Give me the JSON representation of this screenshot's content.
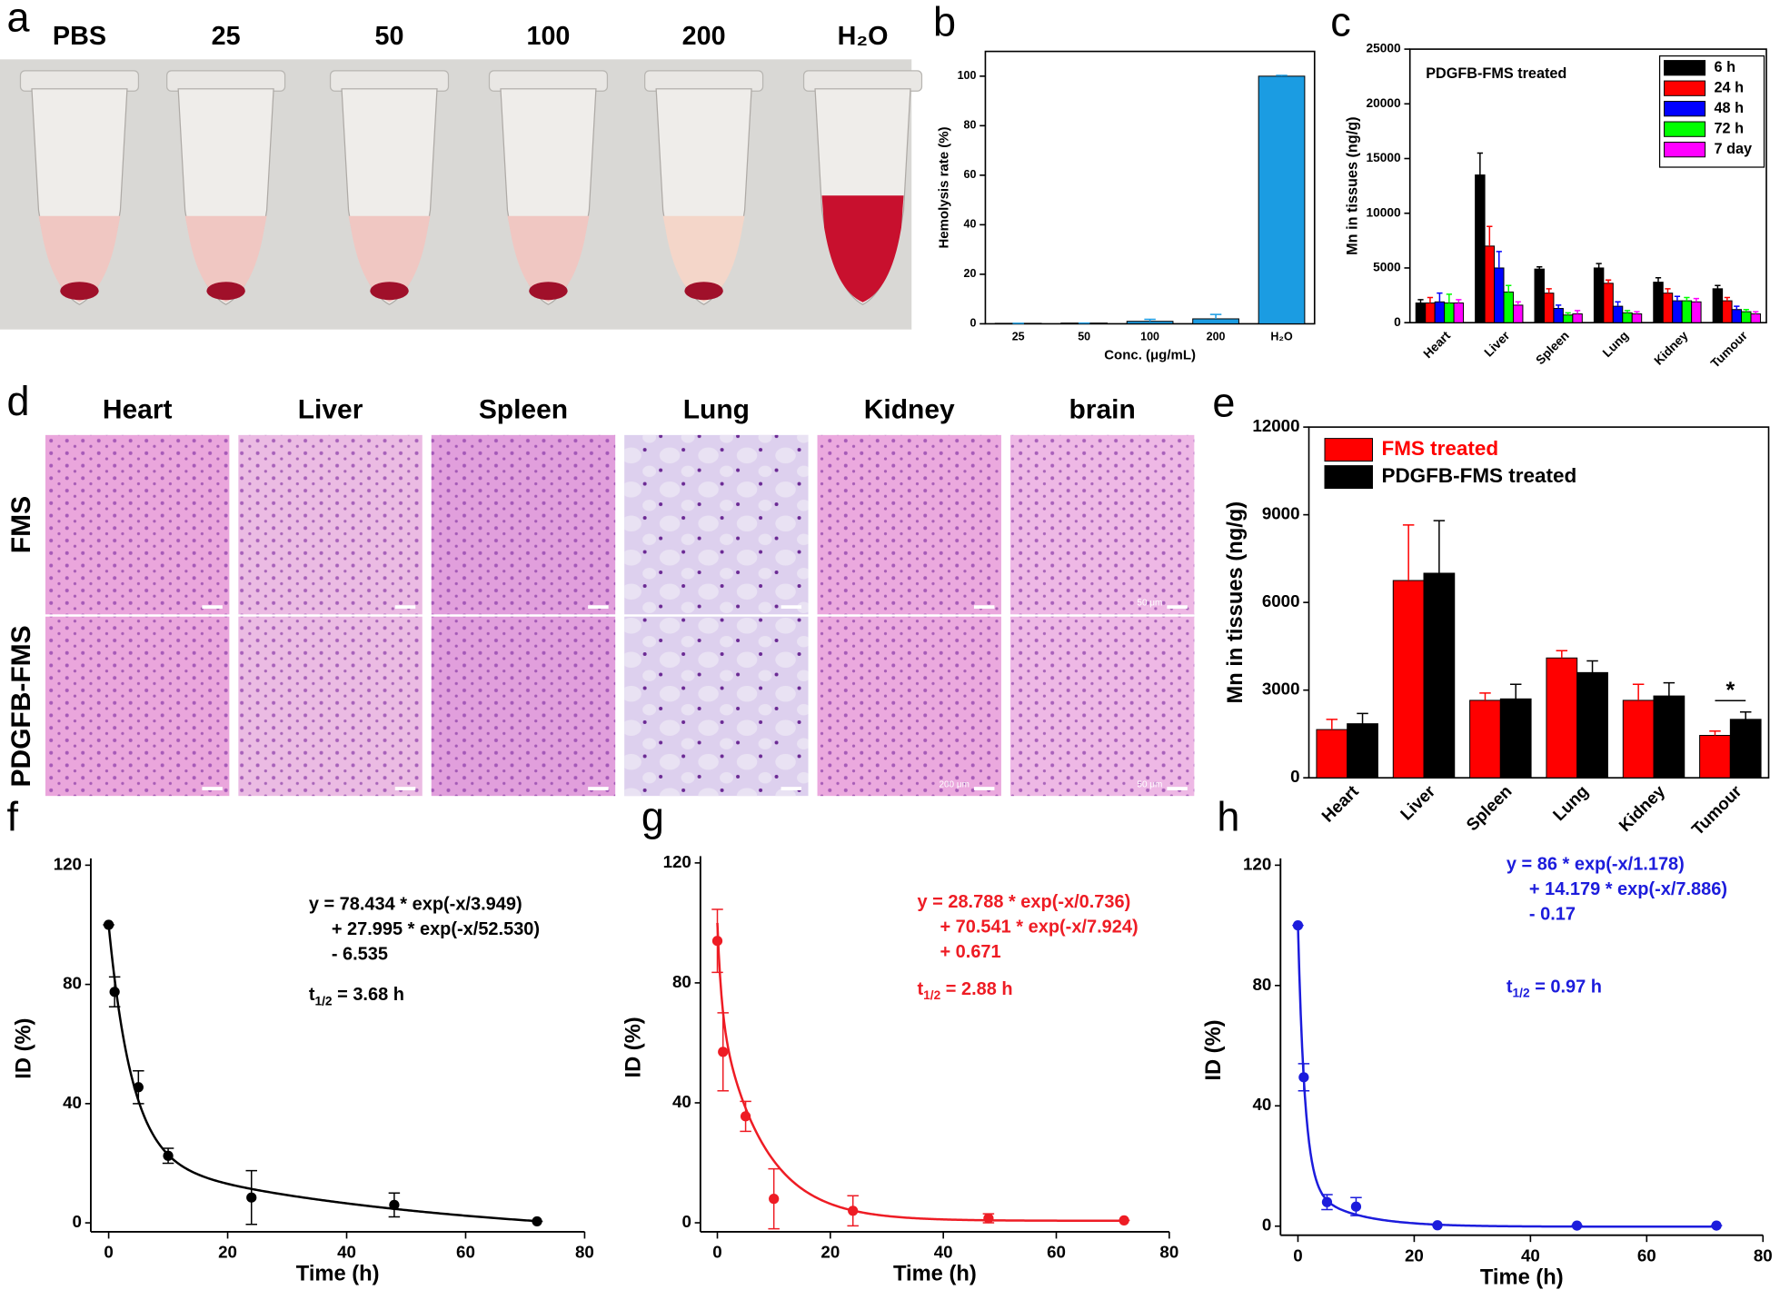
{
  "photo": {
    "panel_label": "a",
    "tube_labels": [
      "PBS",
      "25",
      "50",
      "100",
      "200",
      "H₂O"
    ]
  },
  "histology": {
    "panel_label": "d",
    "columns": [
      "Heart",
      "Liver",
      "Spleen",
      "Lung",
      "Kidney",
      "brain"
    ],
    "rows": [
      {
        "label": "FMS",
        "scale_labels": [
          null,
          null,
          null,
          null,
          null,
          "50 μm"
        ]
      },
      {
        "label": "PDGFB-FMS",
        "scale_labels": [
          null,
          null,
          null,
          null,
          "200 μm",
          "50 μm"
        ]
      }
    ]
  },
  "chart_data": [
    {
      "panel_label": "b",
      "type": "bar",
      "categories": [
        "25",
        "50",
        "100",
        "200",
        "H₂O"
      ],
      "values": [
        0.2,
        0.3,
        1,
        2,
        100
      ],
      "errors": [
        0,
        0,
        0.8,
        1.8,
        0.3
      ],
      "color": "#1b9ce2",
      "xlabel": "Conc. (μg/mL)",
      "ylabel": "Hemolysis rate (%)",
      "ylim": [
        0,
        110
      ],
      "yticks": [
        0,
        20,
        40,
        60,
        80,
        100
      ]
    },
    {
      "panel_label": "c",
      "type": "bar",
      "annotation": "PDGFB-FMS treated",
      "categories": [
        "Heart",
        "Liver",
        "Spleen",
        "Lung",
        "Kidney",
        "Tumour"
      ],
      "series": [
        {
          "name": "6 h",
          "color": "#000000",
          "values": [
            1800,
            13500,
            4900,
            5000,
            3700,
            3100
          ],
          "errors": [
            300,
            2000,
            200,
            400,
            400,
            300
          ]
        },
        {
          "name": "24 h",
          "color": "#ff0000",
          "values": [
            1800,
            7000,
            2700,
            3600,
            2700,
            2000
          ],
          "errors": [
            500,
            1800,
            400,
            300,
            400,
            300
          ]
        },
        {
          "name": "48 h",
          "color": "#0000ff",
          "values": [
            1900,
            5000,
            1300,
            1500,
            2000,
            1200
          ],
          "errors": [
            800,
            1500,
            300,
            400,
            400,
            300
          ]
        },
        {
          "name": "72 h",
          "color": "#00ff00",
          "values": [
            1800,
            2800,
            700,
            900,
            2000,
            1000
          ],
          "errors": [
            800,
            600,
            200,
            200,
            300,
            200
          ]
        },
        {
          "name": "7 day",
          "color": "#ff00ff",
          "values": [
            1800,
            1600,
            800,
            800,
            1900,
            800
          ],
          "errors": [
            300,
            300,
            300,
            200,
            300,
            200
          ]
        }
      ],
      "ylabel": "Mn in tissues (ng/g)",
      "ylim": [
        0,
        25000
      ],
      "yticks": [
        0,
        5000,
        10000,
        15000,
        20000,
        25000
      ],
      "legend": "upper right"
    },
    {
      "panel_label": "e",
      "type": "bar",
      "annotation": "*",
      "categories": [
        "Heart",
        "Liver",
        "Spleen",
        "Lung",
        "Kidney",
        "Tumour"
      ],
      "series": [
        {
          "name": "FMS treated",
          "color": "#ff0000",
          "values": [
            1650,
            6750,
            2650,
            4100,
            2650,
            1450
          ],
          "errors": [
            350,
            1900,
            250,
            250,
            550,
            150
          ]
        },
        {
          "name": "PDGFB-FMS treated",
          "color": "#000000",
          "values": [
            1850,
            7000,
            2700,
            3600,
            2800,
            2000
          ],
          "errors": [
            350,
            1800,
            500,
            400,
            450,
            250
          ]
        }
      ],
      "ylabel": "Mn in tissues (ng/g)",
      "ylim": [
        0,
        12000
      ],
      "yticks": [
        0,
        3000,
        6000,
        9000,
        12000
      ],
      "legend": "upper left",
      "legend_text_colored": true
    },
    {
      "panel_label": "f",
      "type": "scatter",
      "color": "#000000",
      "x": [
        0,
        1,
        5,
        10,
        24,
        48,
        72
      ],
      "values": [
        100,
        77.5,
        45.5,
        22.5,
        8.5,
        6,
        0.5
      ],
      "errors": [
        0,
        5,
        5.5,
        2.5,
        9,
        4,
        0
      ],
      "fit": {
        "a1": 78.434,
        "t1": 3.949,
        "a2": 27.995,
        "t2": 52.53,
        "c": -6.535
      },
      "equation": [
        "y = 78.434 * exp(-x/3.949)",
        "+ 27.995 * exp(-x/52.530)",
        "- 6.535"
      ],
      "half_life": {
        "symbol": "t",
        "subscript": "1/2",
        "text": " = 3.68 h"
      },
      "xlabel": "Time (h)",
      "ylabel": "ID (%)",
      "xlim": [
        -3,
        80
      ],
      "xticks": [
        0,
        20,
        40,
        60,
        80
      ],
      "ylim": [
        -3,
        120
      ],
      "yticks": [
        0,
        40,
        80,
        120
      ]
    },
    {
      "panel_label": "g",
      "type": "scatter",
      "color": "#ee1c24",
      "x": [
        0,
        1,
        5,
        10,
        24,
        48,
        72
      ],
      "values": [
        94,
        57,
        35.5,
        8,
        4,
        1.5,
        0.8
      ],
      "errors": [
        10.5,
        13,
        5,
        10,
        5,
        1.5,
        0
      ],
      "fit": {
        "a1": 28.788,
        "t1": 0.736,
        "a2": 70.541,
        "t2": 7.924,
        "c": 0.671
      },
      "equation": [
        "y = 28.788 * exp(-x/0.736)",
        "+ 70.541 * exp(-x/7.924)",
        "+ 0.671"
      ],
      "half_life": {
        "symbol": "t",
        "subscript": "1/2",
        "text": " = 2.88 h"
      },
      "xlabel": "Time (h)",
      "ylabel": "ID (%)",
      "xlim": [
        -3,
        80
      ],
      "xticks": [
        0,
        20,
        40,
        60,
        80
      ],
      "ylim": [
        -3,
        120
      ],
      "yticks": [
        0,
        40,
        80,
        120
      ]
    },
    {
      "panel_label": "h",
      "type": "scatter",
      "color": "#1c1cdc",
      "x": [
        0,
        1,
        5,
        10,
        24,
        48,
        72
      ],
      "values": [
        100,
        49.5,
        8,
        6.5,
        0.3,
        0.2,
        0.2
      ],
      "errors": [
        0,
        4.5,
        2.5,
        3,
        0,
        0,
        0
      ],
      "fit": {
        "a1": 86,
        "t1": 1.178,
        "a2": 14.179,
        "t2": 7.886,
        "c": -0.17
      },
      "equation": [
        "y = 86 * exp(-x/1.178)",
        "+ 14.179 * exp(-x/7.886)",
        "- 0.17"
      ],
      "half_life": {
        "symbol": "t",
        "subscript": "1/2",
        "text": " = 0.97 h"
      },
      "xlabel": "Time (h)",
      "ylabel": "ID (%)",
      "xlim": [
        -3,
        80
      ],
      "xticks": [
        0,
        20,
        40,
        60,
        80
      ],
      "ylim": [
        -3,
        120
      ],
      "yticks": [
        0,
        40,
        80,
        120
      ]
    }
  ]
}
